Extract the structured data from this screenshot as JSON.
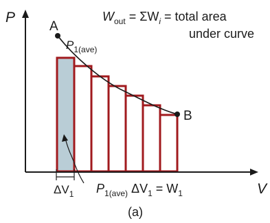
{
  "axes": {
    "y_label": "P",
    "x_label": "V"
  },
  "points": {
    "start": "A",
    "end": "B"
  },
  "equation_top": {
    "w_symbol": "W",
    "w_sub": "out",
    "middle": "= ΣW",
    "wi_sub": "i",
    "tail": "= total area",
    "line2": "under curve"
  },
  "p1_label": {
    "main": "P",
    "sub": "1(ave)"
  },
  "bottom_equation": {
    "p": "P",
    "p_sub": "1(ave)",
    "delta_v": "ΔV",
    "dv_sub": "1",
    "equals_w": "= W",
    "w_sub": "1"
  },
  "delta_label": {
    "delta": "ΔV",
    "sub": "1"
  },
  "caption": "(a)",
  "colors": {
    "bar_stroke": "#a11a1e",
    "shaded_fill": "#b9cdd6",
    "axis": "#1a1a1a"
  },
  "bars": {
    "count": 7,
    "shaded_index": 0
  }
}
